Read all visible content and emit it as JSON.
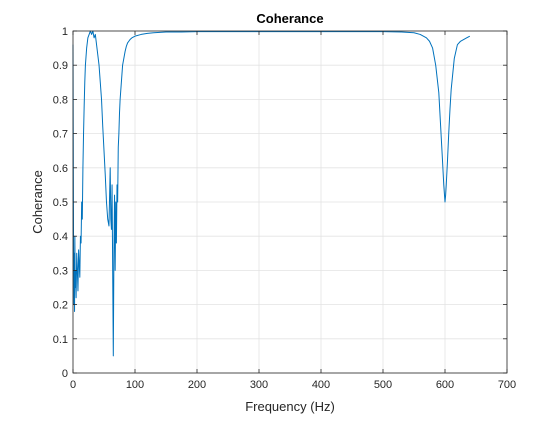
{
  "chart_data": {
    "type": "line",
    "title": "Coherance",
    "xlabel": "Frequency (Hz)",
    "ylabel": "Coherance",
    "xlim": [
      0,
      700
    ],
    "ylim": [
      0,
      1
    ],
    "xticks": [
      0,
      100,
      200,
      300,
      400,
      500,
      600,
      700
    ],
    "xtick_labels": [
      "0",
      "100",
      "200",
      "300",
      "400",
      "500",
      "600",
      "700"
    ],
    "yticks": [
      0,
      0.1,
      0.2,
      0.3,
      0.4,
      0.5,
      0.6,
      0.7,
      0.8,
      0.9,
      1
    ],
    "ytick_labels": [
      "0",
      "0.1",
      "0.2",
      "0.3",
      "0.4",
      "0.5",
      "0.6",
      "0.7",
      "0.8",
      "0.9",
      "1"
    ],
    "grid": true,
    "line_color": "#0072BD",
    "series": [
      {
        "x": [
          0,
          0.5,
          1,
          1.5,
          2,
          2.5,
          3,
          3.5,
          4,
          5,
          6,
          7,
          8,
          9,
          10,
          11,
          12,
          13,
          14,
          15,
          16,
          17,
          18,
          19,
          20,
          22,
          24,
          26,
          28,
          30,
          32,
          34,
          36,
          38,
          40,
          42,
          44,
          46,
          48,
          50,
          52,
          54,
          56,
          58,
          60,
          61,
          62,
          63,
          64,
          65,
          66,
          67,
          68,
          69,
          70,
          71,
          72,
          73,
          74,
          75,
          76,
          78,
          80,
          82,
          84,
          86,
          88,
          90,
          92,
          95,
          100,
          110,
          120,
          130,
          150,
          175,
          200,
          250,
          300,
          350,
          400,
          450,
          500,
          530,
          550,
          560,
          570,
          575,
          580,
          585,
          590,
          593,
          596,
          598,
          600,
          601,
          602,
          604,
          606,
          608,
          610,
          615,
          620,
          625,
          630,
          635,
          640
        ],
        "y": [
          0.96,
          0.6,
          0.3,
          0.2,
          0.35,
          0.18,
          0.4,
          0.25,
          0.3,
          0.22,
          0.35,
          0.3,
          0.24,
          0.36,
          0.32,
          0.28,
          0.4,
          0.38,
          0.5,
          0.45,
          0.6,
          0.7,
          0.78,
          0.85,
          0.9,
          0.95,
          0.98,
          0.99,
          1.0,
          0.99,
          1.0,
          0.98,
          0.99,
          0.96,
          0.93,
          0.9,
          0.85,
          0.8,
          0.72,
          0.65,
          0.58,
          0.5,
          0.45,
          0.43,
          0.6,
          0.45,
          0.42,
          0.55,
          0.3,
          0.05,
          0.35,
          0.52,
          0.3,
          0.5,
          0.38,
          0.55,
          0.5,
          0.66,
          0.7,
          0.76,
          0.8,
          0.85,
          0.9,
          0.92,
          0.94,
          0.955,
          0.965,
          0.97,
          0.975,
          0.98,
          0.985,
          0.99,
          0.993,
          0.995,
          0.997,
          0.997,
          0.998,
          0.998,
          0.998,
          0.998,
          0.998,
          0.998,
          0.998,
          0.997,
          0.995,
          0.99,
          0.98,
          0.97,
          0.95,
          0.9,
          0.82,
          0.72,
          0.62,
          0.55,
          0.5,
          0.52,
          0.55,
          0.62,
          0.7,
          0.77,
          0.83,
          0.92,
          0.96,
          0.97,
          0.975,
          0.98,
          0.985
        ]
      }
    ]
  }
}
